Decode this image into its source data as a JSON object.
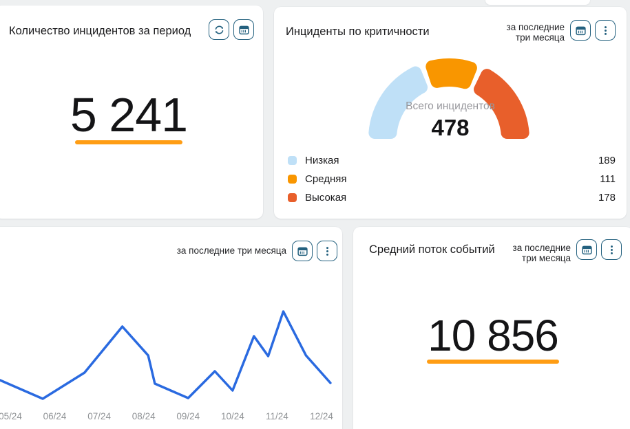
{
  "colors": {
    "background": "#eef0f1",
    "card": "#ffffff",
    "accent_orange": "#ff9d14",
    "icon_blue": "#24617f",
    "line_blue": "#2a6ae0",
    "severity_low": "#bfe0f7",
    "severity_medium": "#f99600",
    "severity_high": "#e85f2b",
    "muted_text": "#97979c",
    "tick_text": "#8f9295"
  },
  "icons": {
    "refresh": "circular-arrows",
    "calendar": "calendar-grid",
    "kebab": "three-vertical-dots"
  },
  "cards": {
    "incident_count": {
      "title": "Количество инцидентов за период",
      "value": "5 241"
    },
    "incidents_by_criticality": {
      "title": "Инциденты по критичности",
      "period_label": "за последние три месяца"
    },
    "events_line": {
      "period_label": "за последние три месяца"
    },
    "avg_event_flow": {
      "title": "Средний поток событий",
      "period_label": "за последние три месяца",
      "value": "10 856"
    }
  },
  "chart_data": [
    {
      "type": "gauge",
      "title": "Инциденты по критичности",
      "center_label": "Всего инцидентов",
      "center_value": "478",
      "total": 478,
      "segments": [
        {
          "label": "Низкая",
          "value": 189,
          "color": "#bfe0f7"
        },
        {
          "label": "Средняя",
          "value": 111,
          "color": "#f99600"
        },
        {
          "label": "Высокая",
          "value": 178,
          "color": "#e85f2b"
        }
      ],
      "start_angle": 180,
      "end_angle": 0,
      "gap_degrees": 4,
      "legend_position": "bottom"
    },
    {
      "type": "line",
      "x_tick_labels": [
        "05/24",
        "06/24",
        "07/24",
        "08/24",
        "09/24",
        "10/24",
        "11/24",
        "12/24"
      ],
      "x_unit": "months since 05/24",
      "y_unit": "relative value (y axis not labeled in source)",
      "points": [
        [
          -0.23,
          37
        ],
        [
          0.73,
          10
        ],
        [
          1.67,
          48
        ],
        [
          2.52,
          115
        ],
        [
          3.1,
          73
        ],
        [
          3.25,
          32
        ],
        [
          4.0,
          11
        ],
        [
          4.6,
          50
        ],
        [
          5.0,
          22
        ],
        [
          5.48,
          101
        ],
        [
          5.8,
          72
        ],
        [
          6.14,
          137
        ],
        [
          6.65,
          73
        ],
        [
          7.2,
          33
        ]
      ],
      "color": "#2a6ae0",
      "grid": false,
      "legend": false
    }
  ]
}
